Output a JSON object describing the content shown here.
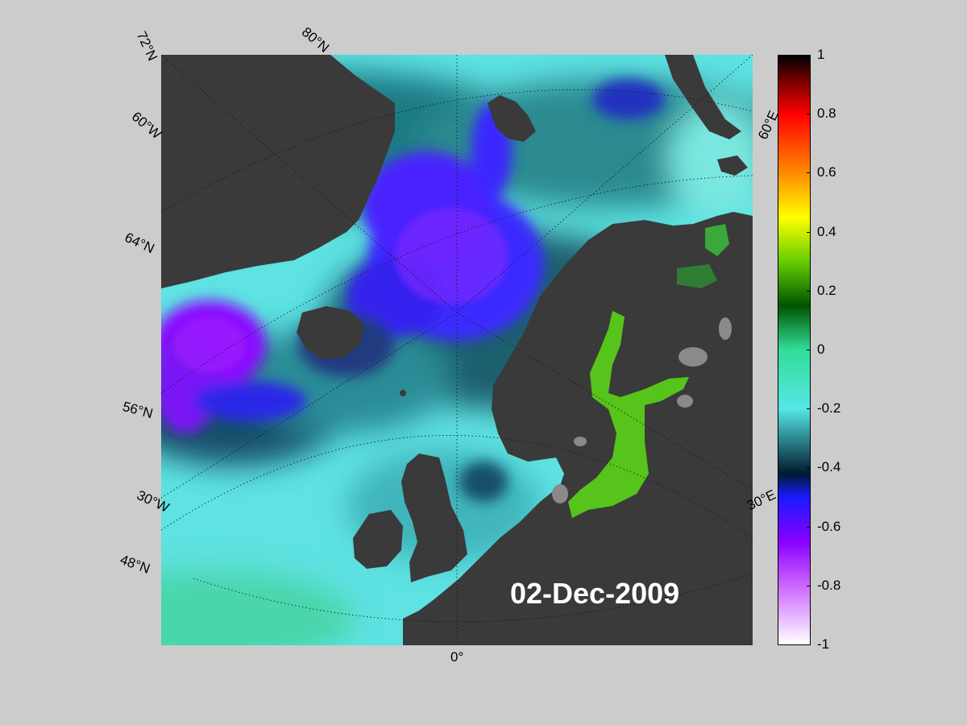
{
  "map": {
    "date": "02-Dec-2009",
    "grid_labels": {
      "lat_72": "72°N",
      "lat_80": "80°N",
      "lat_64": "64°N",
      "lat_56": "56°N",
      "lat_48": "48°N",
      "lon_60w": "60°W",
      "lon_30w": "30°W",
      "lon_0": "0°",
      "lon_30e": "30°E",
      "lon_60e": "60°E"
    },
    "colors": {
      "background": "#cccccc",
      "land": "#3a3a3a",
      "lake": "#888888",
      "ocean_base": "#5fe0e0"
    }
  },
  "colorbar": {
    "ticks": [
      "1",
      "0.8",
      "0.6",
      "0.4",
      "0.2",
      "0",
      "-0.2",
      "-0.4",
      "-0.6",
      "-0.8",
      "-1"
    ],
    "range": [
      -1,
      1
    ],
    "stops": [
      {
        "v": 1.0,
        "c": "#000000"
      },
      {
        "v": 0.9,
        "c": "#8a0000"
      },
      {
        "v": 0.8,
        "c": "#ff0000"
      },
      {
        "v": 0.6,
        "c": "#ff8c00"
      },
      {
        "v": 0.45,
        "c": "#ffff00"
      },
      {
        "v": 0.3,
        "c": "#66cc00"
      },
      {
        "v": 0.15,
        "c": "#005500"
      },
      {
        "v": 0.0,
        "c": "#33dd99"
      },
      {
        "v": -0.2,
        "c": "#55e6e6"
      },
      {
        "v": -0.35,
        "c": "#1a5a66"
      },
      {
        "v": -0.42,
        "c": "#001a30"
      },
      {
        "v": -0.5,
        "c": "#1a1aff"
      },
      {
        "v": -0.65,
        "c": "#8800ff"
      },
      {
        "v": -0.8,
        "c": "#cc66ff"
      },
      {
        "v": -1.0,
        "c": "#ffffff"
      }
    ]
  }
}
